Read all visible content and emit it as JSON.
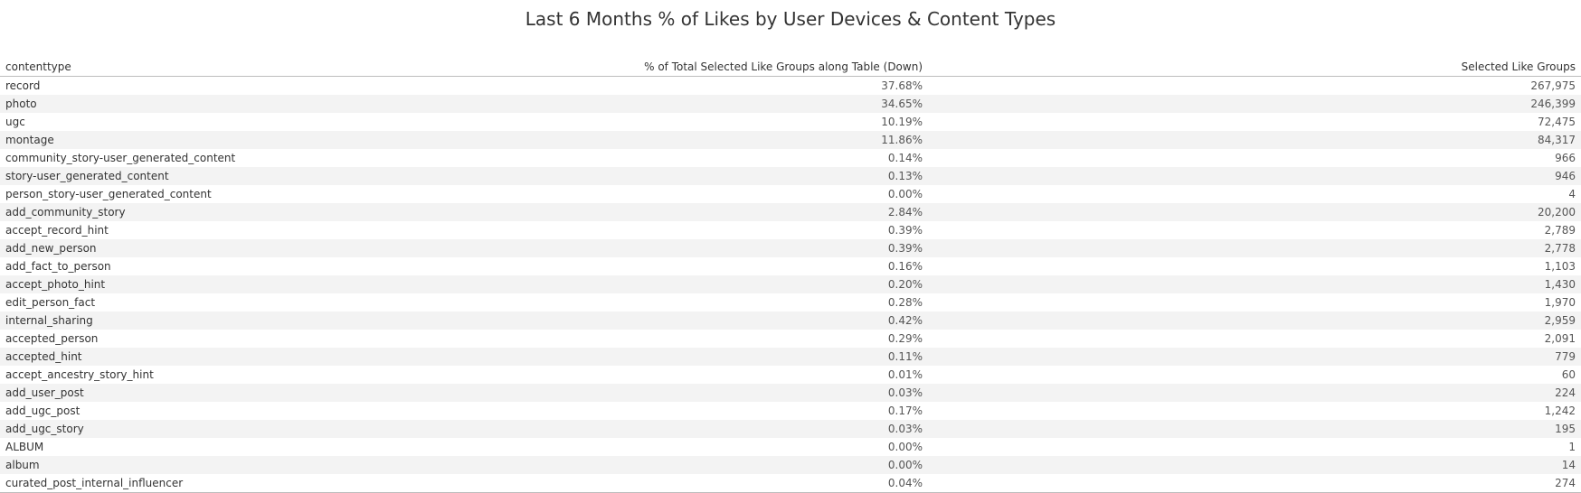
{
  "title": "Last 6 Months % of Likes by User Devices & Content Types",
  "chart_data": {
    "type": "table",
    "title": "Last 6 Months % of Likes by User Devices & Content Types",
    "columns": [
      "contenttype",
      "% of Total Selected Like Groups along Table (Down)",
      "Selected Like Groups"
    ],
    "rows": [
      {
        "contenttype": "record",
        "pct": "37.68%",
        "count": "267,975"
      },
      {
        "contenttype": "photo",
        "pct": "34.65%",
        "count": "246,399"
      },
      {
        "contenttype": "ugc",
        "pct": "10.19%",
        "count": "72,475"
      },
      {
        "contenttype": "montage",
        "pct": "11.86%",
        "count": "84,317"
      },
      {
        "contenttype": "community_story-user_generated_content",
        "pct": "0.14%",
        "count": "966"
      },
      {
        "contenttype": "story-user_generated_content",
        "pct": "0.13%",
        "count": "946"
      },
      {
        "contenttype": "person_story-user_generated_content",
        "pct": "0.00%",
        "count": "4"
      },
      {
        "contenttype": "add_community_story",
        "pct": "2.84%",
        "count": "20,200"
      },
      {
        "contenttype": "accept_record_hint",
        "pct": "0.39%",
        "count": "2,789"
      },
      {
        "contenttype": "add_new_person",
        "pct": "0.39%",
        "count": "2,778"
      },
      {
        "contenttype": "add_fact_to_person",
        "pct": "0.16%",
        "count": "1,103"
      },
      {
        "contenttype": "accept_photo_hint",
        "pct": "0.20%",
        "count": "1,430"
      },
      {
        "contenttype": "edit_person_fact",
        "pct": "0.28%",
        "count": "1,970"
      },
      {
        "contenttype": "internal_sharing",
        "pct": "0.42%",
        "count": "2,959"
      },
      {
        "contenttype": "accepted_person",
        "pct": "0.29%",
        "count": "2,091"
      },
      {
        "contenttype": "accepted_hint",
        "pct": "0.11%",
        "count": "779"
      },
      {
        "contenttype": "accept_ancestry_story_hint",
        "pct": "0.01%",
        "count": "60"
      },
      {
        "contenttype": "add_user_post",
        "pct": "0.03%",
        "count": "224"
      },
      {
        "contenttype": "add_ugc_post",
        "pct": "0.17%",
        "count": "1,242"
      },
      {
        "contenttype": "add_ugc_story",
        "pct": "0.03%",
        "count": "195"
      },
      {
        "contenttype": "ALBUM",
        "pct": "0.00%",
        "count": "1"
      },
      {
        "contenttype": "album",
        "pct": "0.00%",
        "count": "14"
      },
      {
        "contenttype": "curated_post_internal_influencer",
        "pct": "0.04%",
        "count": "274"
      }
    ]
  }
}
